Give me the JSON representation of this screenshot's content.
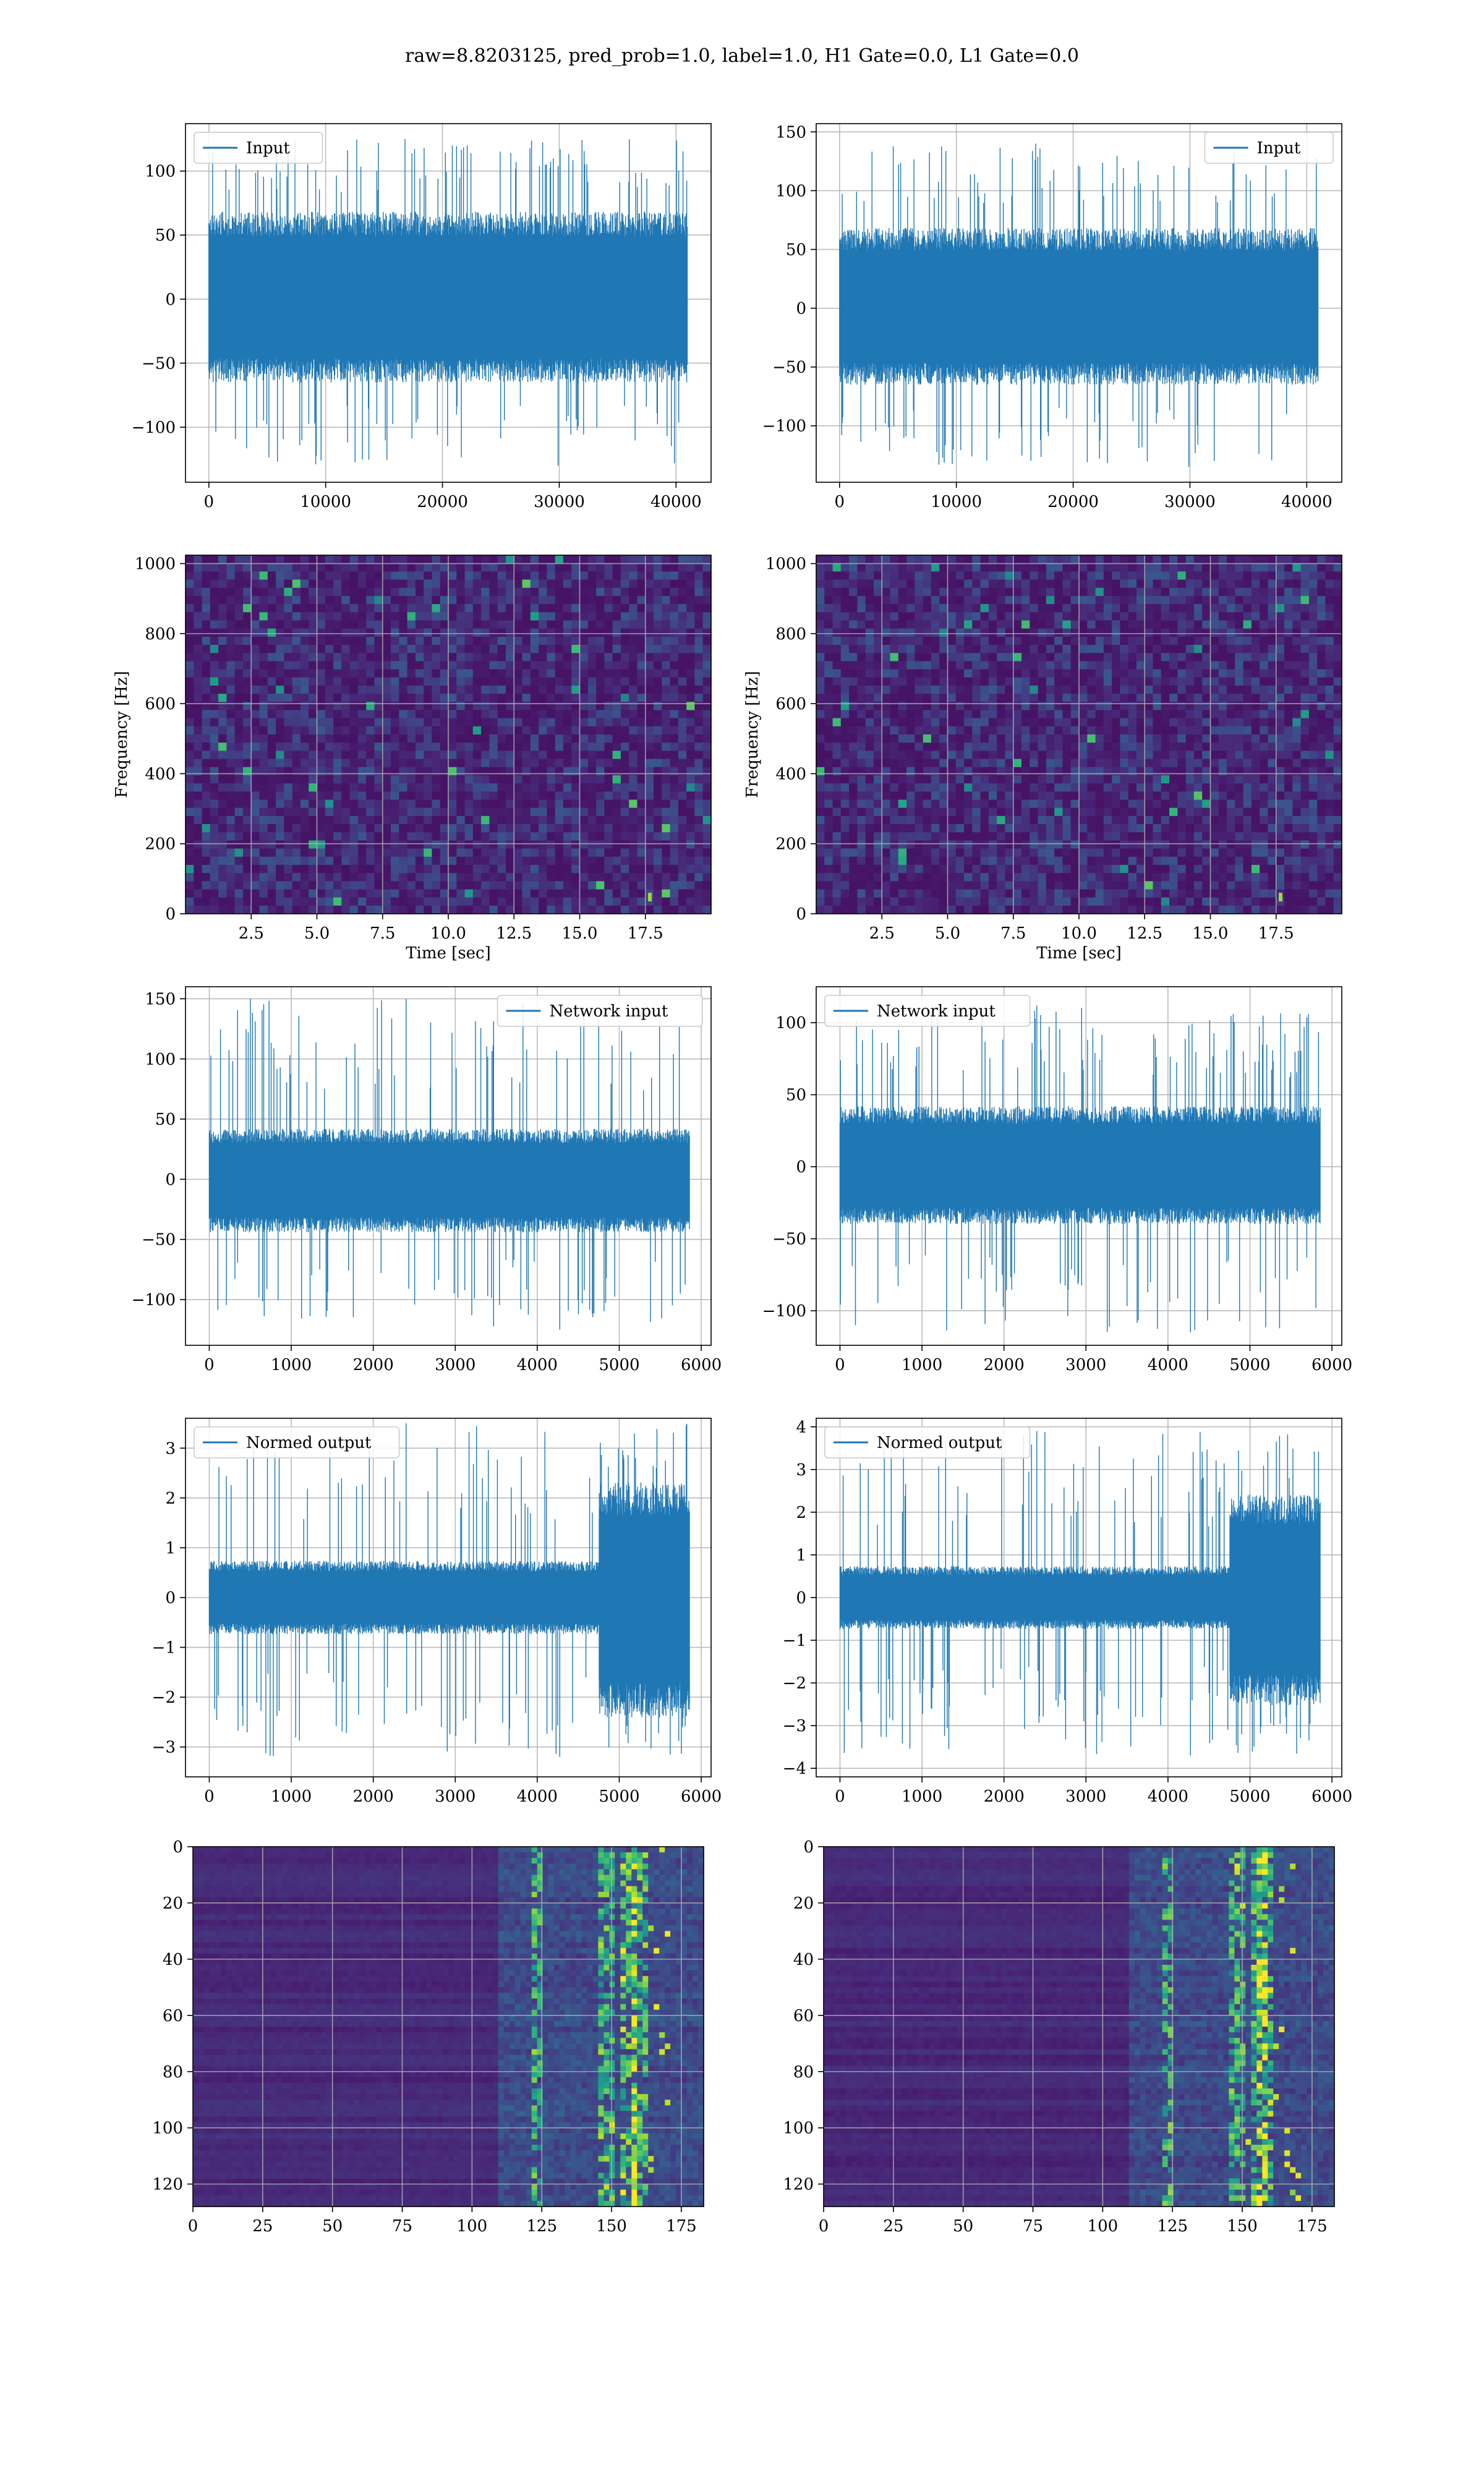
{
  "figure": {
    "suptitle": "raw=8.8203125, pred_prob=1.0, label=1.0, H1 Gate=0.0, L1 Gate=0.0"
  },
  "colors": {
    "line": "#1f77b4",
    "grid": "#b0b0b0",
    "spine": "#000000",
    "viridis_low": "#440154",
    "viridis_mid": "#21918c",
    "viridis_high": "#fde725"
  },
  "chart_data": [
    {
      "id": "input_left",
      "type": "line",
      "grid": true,
      "xticks": [
        0,
        10000,
        20000,
        30000,
        40000
      ],
      "xlim": [
        -2000,
        43000
      ],
      "yticks": [
        -100,
        -50,
        0,
        50,
        100
      ],
      "ylim": [
        -143,
        137
      ],
      "series": [
        {
          "name": "Input",
          "x_range": [
            0,
            40960
          ],
          "envelope_typical": [
            -62,
            65
          ],
          "extremes": [
            -130,
            125
          ]
        }
      ],
      "legend": "upper left"
    },
    {
      "id": "input_right",
      "type": "line",
      "grid": true,
      "xticks": [
        0,
        10000,
        20000,
        30000,
        40000
      ],
      "xlim": [
        -2000,
        43000
      ],
      "yticks": [
        -100,
        -50,
        0,
        50,
        100,
        150
      ],
      "ylim": [
        -148,
        157
      ],
      "series": [
        {
          "name": "Input",
          "x_range": [
            0,
            40960
          ],
          "envelope_typical": [
            -62,
            65
          ],
          "extremes": [
            -135,
            140
          ]
        }
      ],
      "legend": "upper right"
    },
    {
      "id": "spectrogram_left",
      "type": "heatmap",
      "grid": true,
      "xlabel": "Time [sec]",
      "ylabel": "Frequency [Hz]",
      "xticks": [
        2.5,
        5.0,
        7.5,
        10.0,
        12.5,
        15.0,
        17.5
      ],
      "xtick_labels": [
        "2.5",
        "5.0",
        "7.5",
        "10.0",
        "12.5",
        "15.0",
        "17.5"
      ],
      "xlim": [
        0,
        20
      ],
      "yticks": [
        0,
        200,
        400,
        600,
        800,
        1000
      ],
      "ylim": [
        0,
        1024
      ]
    },
    {
      "id": "spectrogram_right",
      "type": "heatmap",
      "grid": true,
      "xlabel": "Time [sec]",
      "ylabel": "Frequency [Hz]",
      "xticks": [
        2.5,
        5.0,
        7.5,
        10.0,
        12.5,
        15.0,
        17.5
      ],
      "xtick_labels": [
        "2.5",
        "5.0",
        "7.5",
        "10.0",
        "12.5",
        "15.0",
        "17.5"
      ],
      "xlim": [
        0,
        20
      ],
      "yticks": [
        0,
        200,
        400,
        600,
        800,
        1000
      ],
      "ylim": [
        0,
        1024
      ]
    },
    {
      "id": "network_input_left",
      "type": "line",
      "grid": true,
      "xticks": [
        0,
        1000,
        2000,
        3000,
        4000,
        5000,
        6000
      ],
      "xlim": [
        -290,
        6120
      ],
      "yticks": [
        -100,
        -50,
        0,
        50,
        100,
        150
      ],
      "ylim": [
        -138,
        160
      ],
      "series": [
        {
          "name": "Network input",
          "x_range": [
            0,
            5856
          ],
          "envelope_typical": [
            -42,
            40
          ],
          "extremes": [
            -125,
            150
          ]
        }
      ],
      "legend": "upper right"
    },
    {
      "id": "network_input_right",
      "type": "line",
      "grid": true,
      "xticks": [
        0,
        1000,
        2000,
        3000,
        4000,
        5000,
        6000
      ],
      "xlim": [
        -290,
        6120
      ],
      "yticks": [
        -100,
        -50,
        0,
        50,
        100
      ],
      "ylim": [
        -124,
        125
      ],
      "series": [
        {
          "name": "Network input",
          "x_range": [
            0,
            5856
          ],
          "envelope_typical": [
            -38,
            40
          ],
          "extremes": [
            -115,
            112
          ]
        }
      ],
      "legend": "upper left"
    },
    {
      "id": "normed_output_left",
      "type": "line",
      "grid": true,
      "xticks": [
        0,
        1000,
        2000,
        3000,
        4000,
        5000,
        6000
      ],
      "xlim": [
        -290,
        6120
      ],
      "yticks": [
        -3,
        -2,
        -1,
        0,
        1,
        2,
        3
      ],
      "ylim": [
        -3.6,
        3.6
      ],
      "series": [
        {
          "name": "Normed output",
          "x_range": [
            0,
            5856
          ],
          "envelope_typical": [
            -0.7,
            0.7
          ],
          "burst_x_range": [
            4750,
            5856
          ],
          "burst_envelope": [
            -2.3,
            2.2
          ],
          "extremes": [
            -3.2,
            3.5
          ]
        }
      ],
      "legend": "upper left"
    },
    {
      "id": "normed_output_right",
      "type": "line",
      "grid": true,
      "xticks": [
        0,
        1000,
        2000,
        3000,
        4000,
        5000,
        6000
      ],
      "xlim": [
        -290,
        6120
      ],
      "yticks": [
        -4,
        -3,
        -2,
        -1,
        0,
        1,
        2,
        3,
        4
      ],
      "ylim": [
        -4.2,
        4.2
      ],
      "series": [
        {
          "name": "Normed output",
          "x_range": [
            0,
            5856
          ],
          "envelope_typical": [
            -0.7,
            0.7
          ],
          "burst_x_range": [
            4750,
            5856
          ],
          "burst_envelope": [
            -2.4,
            2.3
          ],
          "extremes": [
            -3.7,
            3.9
          ]
        }
      ],
      "legend": "upper left"
    },
    {
      "id": "feature_map_left",
      "type": "heatmap",
      "grid": true,
      "xticks": [
        0,
        25,
        50,
        75,
        100,
        125,
        150,
        175
      ],
      "xlim": [
        0,
        183
      ],
      "yticks": [
        0,
        20,
        40,
        60,
        80,
        100,
        120
      ],
      "ylim": [
        128,
        0
      ],
      "bright_columns": [
        124,
        148,
        156,
        160
      ]
    },
    {
      "id": "feature_map_right",
      "type": "heatmap",
      "grid": true,
      "xticks": [
        0,
        25,
        50,
        75,
        100,
        125,
        150,
        175
      ],
      "xlim": [
        0,
        183
      ],
      "yticks": [
        0,
        20,
        40,
        60,
        80,
        100,
        120
      ],
      "ylim": [
        128,
        0
      ],
      "bright_columns": [
        124,
        148,
        156,
        158
      ]
    }
  ]
}
